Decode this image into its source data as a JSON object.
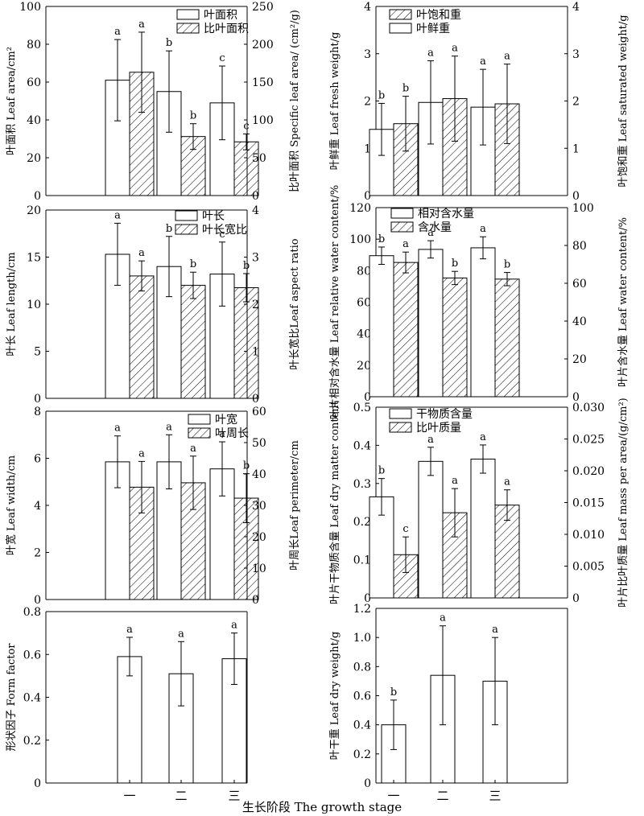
{
  "chart_data": [
    {
      "type": "bar",
      "categories": [
        "一",
        "二",
        "三"
      ],
      "series": [
        {
          "name": "叶面积",
          "axis": "left",
          "fill": "plain",
          "values": [
            61,
            55,
            49
          ],
          "errors": [
            21.5,
            21.5,
            19.5
          ],
          "letters": [
            "a",
            "b",
            "c"
          ]
        },
        {
          "name": "比叶面积",
          "axis": "right",
          "fill": "hatched",
          "values": [
            163,
            78,
            71
          ],
          "errors": [
            53,
            17,
            10.5
          ],
          "letters": [
            "a",
            "b",
            "c"
          ]
        }
      ],
      "ylabel_left": "叶面积 Leaf area/cm²",
      "ylim_left": [
        0,
        100
      ],
      "yticks_left": [
        "0",
        "20",
        "40",
        "60",
        "80",
        "100"
      ],
      "ylabel_right": "比叶面积 Specific leaf area/ (cm²/g)",
      "ylim_right": [
        0,
        250
      ],
      "yticks_right": [
        "0",
        "50",
        "100",
        "150",
        "200",
        "250"
      ],
      "legend_position": "top-right"
    },
    {
      "type": "bar",
      "categories": [
        "一",
        "二",
        "三"
      ],
      "series": [
        {
          "name": "叶鲜重",
          "axis": "left",
          "fill": "plain",
          "values": [
            1.4,
            1.97,
            1.87
          ],
          "errors": [
            0.55,
            0.88,
            0.8
          ],
          "letters": [
            "b",
            "a",
            "a"
          ]
        },
        {
          "name": "叶饱和重",
          "axis": "right",
          "fill": "hatched",
          "values": [
            1.52,
            2.05,
            1.94
          ],
          "errors": [
            0.58,
            0.9,
            0.84
          ],
          "letters": [
            "b",
            "a",
            "a"
          ]
        }
      ],
      "ylabel_left": "叶鲜重 Leaf fresh weight/g",
      "ylim_left": [
        0,
        4
      ],
      "yticks_left": [
        "0",
        "1",
        "2",
        "3",
        "4"
      ],
      "ylabel_right": "叶饱和重 Leaf saturated weight/g",
      "ylim_right": [
        0,
        4
      ],
      "yticks_right": [
        "0",
        "1",
        "2",
        "3",
        "4"
      ],
      "legend_order": [
        "叶饱和重",
        "叶鲜重"
      ],
      "legend_position": "top-left"
    },
    {
      "type": "bar",
      "categories": [
        "一",
        "二",
        "三"
      ],
      "series": [
        {
          "name": "叶长",
          "axis": "left",
          "fill": "plain",
          "values": [
            15.3,
            14.0,
            13.2
          ],
          "errors": [
            3.3,
            3.2,
            3.4
          ],
          "letters": [
            "a",
            "b",
            "c"
          ]
        },
        {
          "name": "叶长宽比",
          "axis": "right",
          "fill": "hatched",
          "values": [
            2.6,
            2.4,
            2.35
          ],
          "errors": [
            0.32,
            0.28,
            0.3
          ],
          "letters": [
            "a",
            "b",
            "b"
          ]
        }
      ],
      "ylabel_left": "叶长 Leaf length/cm",
      "ylim_left": [
        0,
        20
      ],
      "yticks_left": [
        "0",
        "5",
        "10",
        "15",
        "20"
      ],
      "ylabel_right": "叶长宽比Leaf aspect ratio",
      "ylim_right": [
        0,
        4
      ],
      "yticks_right": [
        "0",
        "1",
        "2",
        "3",
        "4"
      ],
      "legend_position": "top-right"
    },
    {
      "type": "bar",
      "categories": [
        "一",
        "二",
        "三"
      ],
      "series": [
        {
          "name": "相对含水量",
          "axis": "left",
          "fill": "plain",
          "values": [
            89.5,
            93.5,
            94.5
          ],
          "errors": [
            5.5,
            5.5,
            7
          ],
          "letters": [
            "b",
            "a",
            "a"
          ]
        },
        {
          "name": "含水量",
          "axis": "right",
          "fill": "hatched",
          "values": [
            71,
            62.8,
            62.2
          ],
          "errors": [
            5.5,
            3.5,
            3.5
          ],
          "letters": [
            "a",
            "b",
            "b"
          ]
        }
      ],
      "ylabel_left": "叶片相对含水量 Leaf relative water content/%",
      "ylim_left": [
        0,
        120
      ],
      "yticks_left": [
        "0",
        "20",
        "40",
        "60",
        "80",
        "100",
        "120"
      ],
      "ylabel_right": "叶片含水量 Leaf water content/%",
      "ylim_right": [
        0,
        100
      ],
      "yticks_right": [
        "0",
        "20",
        "40",
        "60",
        "80",
        "100"
      ],
      "legend_position": "top-left"
    },
    {
      "type": "bar",
      "categories": [
        "一",
        "二",
        "三"
      ],
      "series": [
        {
          "name": "叶宽",
          "axis": "left",
          "fill": "plain",
          "values": [
            5.85,
            5.85,
            5.55
          ],
          "errors": [
            1.1,
            1.15,
            1.15
          ],
          "letters": [
            "a",
            "a",
            "a"
          ]
        },
        {
          "name": "叶周长",
          "axis": "right",
          "fill": "hatched",
          "values": [
            35.8,
            37.2,
            32.3
          ],
          "errors": [
            8.2,
            8.5,
            7.8
          ],
          "letters": [
            "a",
            "a",
            "b"
          ]
        }
      ],
      "ylabel_left": "叶宽 Leaf width/cm",
      "ylim_left": [
        0,
        8
      ],
      "yticks_left": [
        "0",
        "2",
        "4",
        "6",
        "8"
      ],
      "ylabel_right": "叶周长Leaf perimeter/cm",
      "ylim_right": [
        0,
        60
      ],
      "yticks_right": [
        "0",
        "10",
        "20",
        "30",
        "40",
        "50",
        "60"
      ],
      "legend_position": "top-right"
    },
    {
      "type": "bar",
      "categories": [
        "一",
        "二",
        "三"
      ],
      "series": [
        {
          "name": "干物质含量",
          "axis": "left",
          "fill": "plain",
          "values": [
            0.265,
            0.358,
            0.364
          ],
          "errors": [
            0.048,
            0.037,
            0.037
          ],
          "letters": [
            "b",
            "a",
            "a"
          ]
        },
        {
          "name": "比叶质量",
          "axis": "right",
          "fill": "hatched",
          "values": [
            0.0068,
            0.0134,
            0.0146
          ],
          "errors": [
            0.0028,
            0.0038,
            0.0024
          ],
          "letters": [
            "c",
            "a",
            "a"
          ]
        }
      ],
      "ylabel_left": "叶片干物质含量 Leaf dry matter content",
      "ylim_left": [
        0,
        0.5
      ],
      "yticks_left": [
        "0",
        "0.1",
        "0.2",
        "0.3",
        "0.4",
        "0.5"
      ],
      "ylabel_right": "叶片比叶质量 Leaf mass per area/(g/cm²)",
      "ylim_right": [
        0,
        0.03
      ],
      "yticks_right": [
        "0",
        "0.005",
        "0.010",
        "0.015",
        "0.020",
        "0.025",
        "0.030"
      ],
      "legend_position": "top-left"
    },
    {
      "type": "bar",
      "categories": [
        "一",
        "二",
        "三"
      ],
      "series": [
        {
          "name": "",
          "axis": "left",
          "fill": "plain",
          "values": [
            0.59,
            0.51,
            0.58
          ],
          "errors": [
            0.09,
            0.15,
            0.12
          ],
          "letters": [
            "a",
            "a",
            "a"
          ]
        }
      ],
      "ylabel_left": "形状因子 Form factor",
      "ylim_left": [
        0,
        0.8
      ],
      "yticks_left": [
        "0",
        "0.2",
        "0.4",
        "0.6",
        "0.8"
      ]
    },
    {
      "type": "bar",
      "categories": [
        "一",
        "二",
        "三"
      ],
      "series": [
        {
          "name": "",
          "axis": "left",
          "fill": "plain",
          "values": [
            0.4,
            0.74,
            0.7
          ],
          "errors": [
            0.17,
            0.34,
            0.3
          ],
          "letters": [
            "b",
            "a",
            "a"
          ]
        }
      ],
      "ylabel_left": "叶干重 Leaf dry weight/g",
      "ylim_left": [
        0,
        1.2
      ],
      "yticks_left": [
        "0",
        "0.2",
        "0.4",
        "0.6",
        "0.8",
        "1.0",
        "1.2"
      ]
    }
  ],
  "figure": {
    "xlabel": "生长阶段 The growth stage"
  }
}
